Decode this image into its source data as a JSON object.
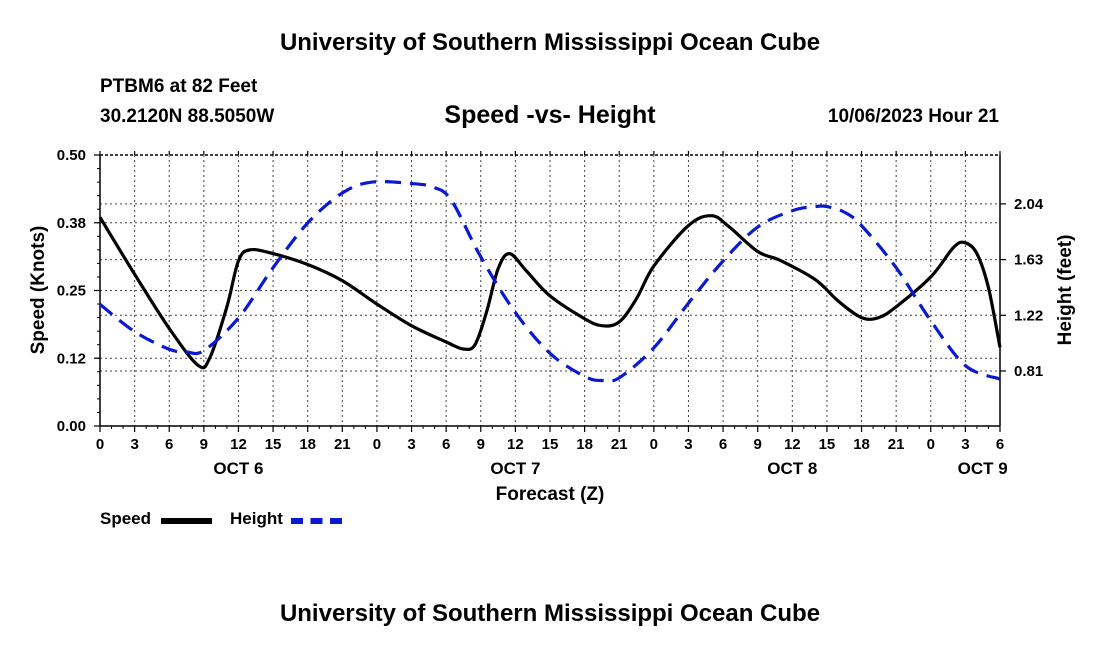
{
  "page": {
    "title_top": "University of Southern Mississippi Ocean Cube",
    "title_bottom": "University of Southern Mississippi Ocean Cube",
    "station": "PTBM6 at 82 Feet",
    "coords": "30.2120N  88.5050W",
    "subtitle": "Speed -vs- Height",
    "datetime": "10/06/2023 Hour 21"
  },
  "legend": {
    "speed_label": "Speed",
    "height_label": "Height"
  },
  "colors": {
    "speed": "#000000",
    "height": "#0a1ad0",
    "grid": "#444444"
  },
  "chart_data": {
    "type": "line",
    "title": "Speed -vs- Height",
    "xlabel": "Forecast (Z)",
    "ylabel_left": "Speed (Knots)",
    "ylabel_right": "Height (feet)",
    "x_range_hours": [
      0,
      78
    ],
    "x_ticks": [
      {
        "h": 0,
        "label": "0"
      },
      {
        "h": 3,
        "label": "3"
      },
      {
        "h": 6,
        "label": "6"
      },
      {
        "h": 9,
        "label": "9"
      },
      {
        "h": 12,
        "label": "12"
      },
      {
        "h": 15,
        "label": "15"
      },
      {
        "h": 18,
        "label": "18"
      },
      {
        "h": 21,
        "label": "21"
      },
      {
        "h": 24,
        "label": "0"
      },
      {
        "h": 27,
        "label": "3"
      },
      {
        "h": 30,
        "label": "6"
      },
      {
        "h": 33,
        "label": "9"
      },
      {
        "h": 36,
        "label": "12"
      },
      {
        "h": 39,
        "label": "15"
      },
      {
        "h": 42,
        "label": "18"
      },
      {
        "h": 45,
        "label": "21"
      },
      {
        "h": 48,
        "label": "0"
      },
      {
        "h": 51,
        "label": "3"
      },
      {
        "h": 54,
        "label": "6"
      },
      {
        "h": 57,
        "label": "9"
      },
      {
        "h": 60,
        "label": "12"
      },
      {
        "h": 63,
        "label": "15"
      },
      {
        "h": 66,
        "label": "18"
      },
      {
        "h": 69,
        "label": "21"
      },
      {
        "h": 72,
        "label": "0"
      },
      {
        "h": 75,
        "label": "3"
      },
      {
        "h": 78,
        "label": "6"
      }
    ],
    "day_labels": [
      {
        "h": 12,
        "label": "OCT 6"
      },
      {
        "h": 36,
        "label": "OCT 7"
      },
      {
        "h": 60,
        "label": "OCT 8"
      },
      {
        "h": 76.5,
        "label": "OCT 9"
      }
    ],
    "y_left": {
      "range": [
        0,
        0.5
      ],
      "ticks": [
        "0.00",
        "0.12",
        "0.25",
        "0.38",
        "0.50"
      ],
      "tick_values": [
        0,
        0.125,
        0.25,
        0.375,
        0.5
      ]
    },
    "y_right": {
      "range": [
        0.405,
        2.4
      ],
      "ticks": [
        "0.81",
        "1.22",
        "1.63",
        "2.04"
      ],
      "tick_values": [
        0.81,
        1.22,
        1.63,
        2.04
      ]
    },
    "series": [
      {
        "name": "Speed",
        "axis": "left",
        "style": "solid",
        "points": [
          [
            0,
            0.385
          ],
          [
            3,
            0.28
          ],
          [
            6,
            0.18
          ],
          [
            8.5,
            0.112
          ],
          [
            9.5,
            0.125
          ],
          [
            11,
            0.22
          ],
          [
            12,
            0.305
          ],
          [
            13,
            0.325
          ],
          [
            15,
            0.318
          ],
          [
            18,
            0.298
          ],
          [
            21,
            0.268
          ],
          [
            24,
            0.225
          ],
          [
            27,
            0.185
          ],
          [
            30,
            0.155
          ],
          [
            31.5,
            0.142
          ],
          [
            32.5,
            0.15
          ],
          [
            33.5,
            0.21
          ],
          [
            34.5,
            0.29
          ],
          [
            35.5,
            0.318
          ],
          [
            37,
            0.285
          ],
          [
            39,
            0.24
          ],
          [
            42,
            0.198
          ],
          [
            43.5,
            0.185
          ],
          [
            45,
            0.192
          ],
          [
            46.5,
            0.235
          ],
          [
            48,
            0.295
          ],
          [
            51,
            0.37
          ],
          [
            53,
            0.388
          ],
          [
            54.5,
            0.368
          ],
          [
            57,
            0.322
          ],
          [
            59,
            0.305
          ],
          [
            62,
            0.27
          ],
          [
            64,
            0.23
          ],
          [
            66,
            0.2
          ],
          [
            67.5,
            0.2
          ],
          [
            69,
            0.22
          ],
          [
            72,
            0.275
          ],
          [
            74,
            0.33
          ],
          [
            75,
            0.338
          ],
          [
            76,
            0.318
          ],
          [
            77,
            0.255
          ],
          [
            78,
            0.145
          ]
        ]
      },
      {
        "name": "Height",
        "axis": "right",
        "style": "dashed",
        "points": [
          [
            0,
            1.3
          ],
          [
            3,
            1.1
          ],
          [
            6,
            0.97
          ],
          [
            7.5,
            0.95
          ],
          [
            9,
            0.96
          ],
          [
            12,
            1.2
          ],
          [
            15,
            1.57
          ],
          [
            18,
            1.9
          ],
          [
            21,
            2.12
          ],
          [
            23.5,
            2.2
          ],
          [
            27,
            2.19
          ],
          [
            29,
            2.16
          ],
          [
            30.5,
            2.06
          ],
          [
            33,
            1.65
          ],
          [
            36,
            1.24
          ],
          [
            39,
            0.94
          ],
          [
            42,
            0.77
          ],
          [
            43.5,
            0.74
          ],
          [
            45,
            0.76
          ],
          [
            48,
            0.98
          ],
          [
            51,
            1.31
          ],
          [
            54,
            1.62
          ],
          [
            57,
            1.87
          ],
          [
            60,
            1.99
          ],
          [
            62,
            2.02
          ],
          [
            63,
            2.02
          ],
          [
            64.5,
            1.98
          ],
          [
            66,
            1.88
          ],
          [
            69,
            1.57
          ],
          [
            72,
            1.18
          ],
          [
            75,
            0.85
          ],
          [
            78,
            0.75
          ]
        ]
      }
    ]
  }
}
